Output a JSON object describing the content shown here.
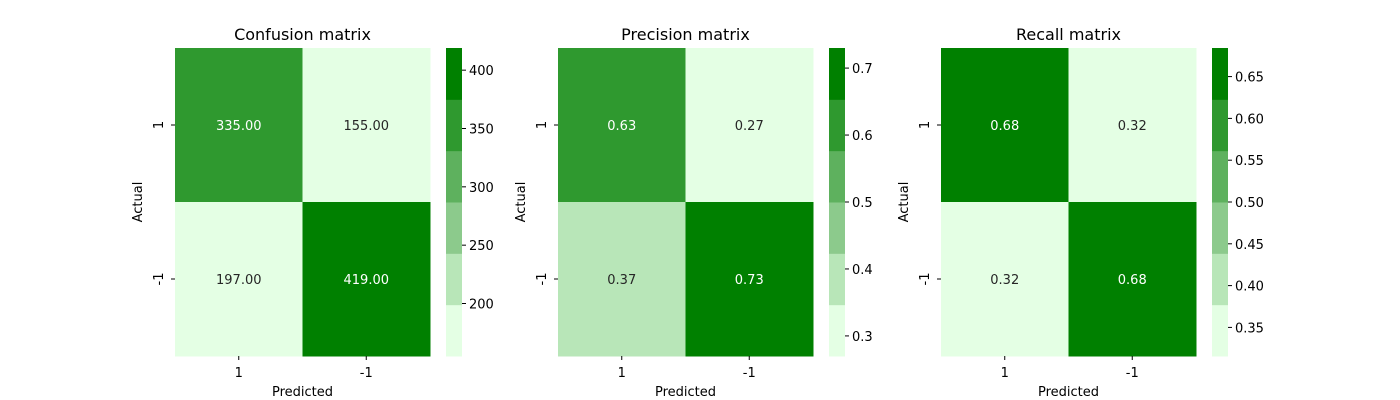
{
  "chart_data": [
    {
      "type": "heatmap",
      "title": "Confusion matrix",
      "xlabel": "Predicted",
      "ylabel": "Actual",
      "x_categories": [
        "1",
        "-1"
      ],
      "y_categories": [
        "1",
        "-1"
      ],
      "values": [
        [
          335.0,
          155.0
        ],
        [
          197.0,
          419.0
        ]
      ],
      "value_labels": [
        [
          "335.00",
          "155.00"
        ],
        [
          "197.00",
          "419.00"
        ]
      ],
      "colorbar": {
        "ticks": [
          200,
          250,
          300,
          350,
          400
        ],
        "tick_labels": [
          "200",
          "250",
          "300",
          "350",
          "400"
        ],
        "range": [
          155,
          419
        ],
        "levels": 6
      }
    },
    {
      "type": "heatmap",
      "title": "Precision matrix",
      "xlabel": "Predicted",
      "ylabel": "Actual",
      "x_categories": [
        "1",
        "-1"
      ],
      "y_categories": [
        "1",
        "-1"
      ],
      "values": [
        [
          0.63,
          0.27
        ],
        [
          0.37,
          0.73
        ]
      ],
      "value_labels": [
        [
          "0.63",
          "0.27"
        ],
        [
          "0.37",
          "0.73"
        ]
      ],
      "colorbar": {
        "ticks": [
          0.3,
          0.4,
          0.5,
          0.6,
          0.7
        ],
        "tick_labels": [
          "0.3",
          "0.4",
          "0.5",
          "0.6",
          "0.7"
        ],
        "range": [
          0.27,
          0.73
        ],
        "levels": 6
      }
    },
    {
      "type": "heatmap",
      "title": "Recall matrix",
      "xlabel": "Predicted",
      "ylabel": "Actual",
      "x_categories": [
        "1",
        "-1"
      ],
      "y_categories": [
        "1",
        "-1"
      ],
      "values": [
        [
          0.68,
          0.32
        ],
        [
          0.32,
          0.68
        ]
      ],
      "value_labels": [
        [
          "0.68",
          "0.32"
        ],
        [
          "0.32",
          "0.68"
        ]
      ],
      "colorbar": {
        "ticks": [
          0.35,
          0.4,
          0.45,
          0.5,
          0.55,
          0.6,
          0.65
        ],
        "tick_labels": [
          "0.35",
          "0.40",
          "0.45",
          "0.50",
          "0.55",
          "0.60",
          "0.65"
        ],
        "range": [
          0.3158,
          0.6842
        ],
        "levels": 6
      }
    }
  ],
  "palette": [
    "#e4ffe4",
    "#b8e6b8",
    "#8cca8c",
    "#5eb15e",
    "#2f992f",
    "#008000"
  ],
  "text_colors": {
    "light_cell": "#262626",
    "dark_cell": "#ffffff"
  }
}
